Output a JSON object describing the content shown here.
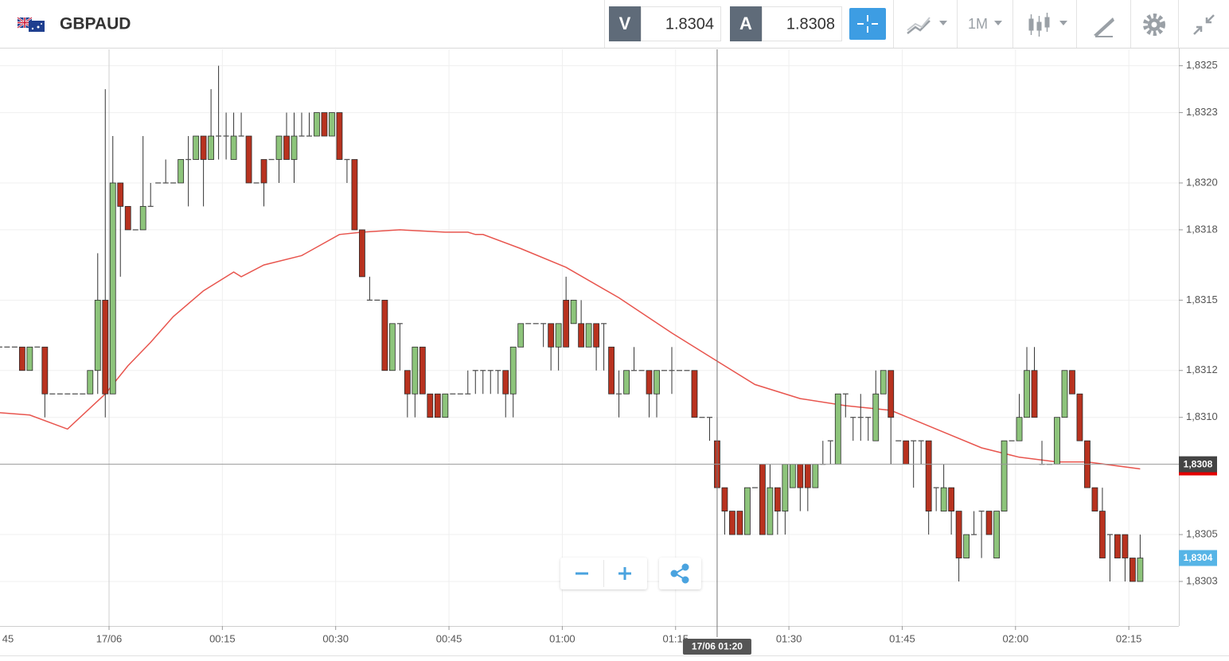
{
  "header": {
    "symbol": "GBPAUD",
    "bid_label": "V",
    "bid": 1.8304,
    "ask_label": "A",
    "ask": 1.8308,
    "interval": "1M"
  },
  "chart_data": {
    "type": "candlestick",
    "categories": [
      "23:45",
      "23:46",
      "23:47",
      "23:48",
      "23:49",
      "23:50",
      "23:51",
      "23:52",
      "23:53",
      "23:54",
      "23:55",
      "23:56",
      "23:57",
      "23:58",
      "23:59",
      "00:00",
      "00:01",
      "00:02",
      "00:03",
      "00:04",
      "00:05",
      "00:06",
      "00:07",
      "00:08",
      "00:09",
      "00:10",
      "00:11",
      "00:12",
      "00:13",
      "00:14",
      "00:15",
      "00:16",
      "00:17",
      "00:18",
      "00:19",
      "00:20",
      "00:21",
      "00:22",
      "00:23",
      "00:24",
      "00:25",
      "00:26",
      "00:27",
      "00:28",
      "00:29",
      "00:30",
      "00:31",
      "00:32",
      "00:33",
      "00:34",
      "00:35",
      "00:36",
      "00:37",
      "00:38",
      "00:39",
      "00:40",
      "00:41",
      "00:42",
      "00:43",
      "00:44",
      "00:45",
      "00:46",
      "00:47",
      "00:48",
      "00:49",
      "00:50",
      "00:51",
      "00:52",
      "00:53",
      "00:54",
      "00:55",
      "00:56",
      "00:57",
      "00:58",
      "00:59",
      "01:00",
      "01:01",
      "01:02",
      "01:03",
      "01:04",
      "01:05",
      "01:06",
      "01:07",
      "01:08",
      "01:09",
      "01:10",
      "01:11",
      "01:12",
      "01:13",
      "01:14",
      "01:15",
      "01:16",
      "01:17",
      "01:18",
      "01:19",
      "01:20",
      "01:21",
      "01:22",
      "01:23",
      "01:24",
      "01:25",
      "01:26",
      "01:27",
      "01:28",
      "01:29",
      "01:30",
      "01:31",
      "01:32",
      "01:33",
      "01:34",
      "01:35",
      "01:36",
      "01:37",
      "01:38",
      "01:39",
      "01:40",
      "01:41",
      "01:42",
      "01:43",
      "01:44",
      "01:45",
      "01:46",
      "01:47",
      "01:48",
      "01:49",
      "01:50",
      "01:51",
      "01:52",
      "01:53",
      "01:54",
      "01:55",
      "01:56",
      "01:57",
      "01:58",
      "01:59",
      "02:00",
      "02:01",
      "02:02",
      "02:03",
      "02:04",
      "02:05",
      "02:06",
      "02:07",
      "02:08",
      "02:09",
      "02:10",
      "02:11",
      "02:12",
      "02:13",
      "02:14",
      "02:15",
      "02:16"
    ],
    "open": [
      1.8313,
      1.8313,
      1.8313,
      1.8313,
      1.8312,
      1.8313,
      1.8313,
      1.8311,
      1.8311,
      1.8311,
      1.8311,
      1.8311,
      1.8311,
      1.8312,
      1.8315,
      1.8311,
      1.832,
      1.8319,
      1.8318,
      1.8318,
      1.8319,
      1.832,
      1.832,
      1.832,
      1.832,
      1.8321,
      1.8321,
      1.8322,
      1.8321,
      1.8322,
      1.8322,
      1.8321,
      1.8322,
      1.8322,
      1.832,
      1.8321,
      1.8321,
      1.8321,
      1.8322,
      1.8321,
      1.8322,
      1.8322,
      1.8322,
      1.8323,
      1.8322,
      1.8323,
      1.8321,
      1.8321,
      1.8318,
      1.8315,
      1.8315,
      1.8315,
      1.8312,
      1.8314,
      1.8312,
      1.8311,
      1.8313,
      1.8311,
      1.8311,
      1.831,
      1.8311,
      1.8311,
      1.8311,
      1.8312,
      1.8312,
      1.8312,
      1.8312,
      1.8312,
      1.8311,
      1.8313,
      1.8314,
      1.8314,
      1.8314,
      1.8314,
      1.8313,
      1.8315,
      1.8314,
      1.8314,
      1.8313,
      1.8314,
      1.8314,
      1.8313,
      1.8311,
      1.8311,
      1.8312,
      1.8312,
      1.8312,
      1.8311,
      1.8312,
      1.8312,
      1.8312,
      1.8312,
      1.8312,
      1.831,
      1.831,
      1.8309,
      1.8307,
      1.8306,
      1.8306,
      1.8305,
      1.8307,
      1.8308,
      1.8305,
      1.8307,
      1.8306,
      1.8307,
      1.8308,
      1.8308,
      1.8307,
      1.8308,
      1.8309,
      1.8308,
      1.8311,
      1.831,
      1.831,
      1.831,
      1.8309,
      1.8311,
      1.8312,
      1.8309,
      1.8309,
      1.8309,
      1.8309,
      1.8309,
      1.8307,
      1.8306,
      1.8307,
      1.8306,
      1.8304,
      1.8305,
      1.8306,
      1.8306,
      1.8304,
      1.8306,
      1.8309,
      1.8309,
      1.831,
      1.8312,
      1.8308,
      1.8308,
      1.8308,
      1.831,
      1.8312,
      1.8311,
      1.8309,
      1.8307,
      1.8306,
      1.8305,
      1.8305,
      1.8305,
      1.8304,
      1.8303
    ],
    "high": [
      1.8313,
      1.8313,
      1.8313,
      1.8313,
      1.8313,
      1.8313,
      1.8313,
      1.8311,
      1.8311,
      1.8311,
      1.8311,
      1.8311,
      1.8312,
      1.8317,
      1.8324,
      1.8322,
      1.832,
      1.8319,
      1.8318,
      1.8322,
      1.832,
      1.832,
      1.8321,
      1.832,
      1.8321,
      1.8322,
      1.8322,
      1.8322,
      1.8324,
      1.8325,
      1.8323,
      1.8323,
      1.8323,
      1.8322,
      1.832,
      1.8321,
      1.8321,
      1.8322,
      1.8323,
      1.8323,
      1.8323,
      1.8323,
      1.8323,
      1.8323,
      1.8323,
      1.8323,
      1.8321,
      1.8321,
      1.8318,
      1.8316,
      1.8315,
      1.8315,
      1.8314,
      1.8314,
      1.8312,
      1.8313,
      1.8313,
      1.8311,
      1.8311,
      1.8311,
      1.8311,
      1.8311,
      1.8312,
      1.8312,
      1.8312,
      1.8312,
      1.8312,
      1.8312,
      1.8313,
      1.8314,
      1.8314,
      1.8314,
      1.8314,
      1.8314,
      1.8314,
      1.8316,
      1.8315,
      1.8315,
      1.8314,
      1.8314,
      1.8314,
      1.8313,
      1.8312,
      1.8312,
      1.8313,
      1.8312,
      1.8312,
      1.8312,
      1.8312,
      1.8313,
      1.8312,
      1.8312,
      1.8312,
      1.831,
      1.831,
      1.831,
      1.8307,
      1.8306,
      1.8306,
      1.8307,
      1.8307,
      1.8308,
      1.8308,
      1.8307,
      1.8308,
      1.8308,
      1.8308,
      1.8308,
      1.8308,
      1.8309,
      1.8309,
      1.8311,
      1.8311,
      1.831,
      1.8311,
      1.831,
      1.8312,
      1.8312,
      1.8312,
      1.8309,
      1.8309,
      1.8309,
      1.8309,
      1.8309,
      1.8307,
      1.8308,
      1.8307,
      1.8306,
      1.8305,
      1.8306,
      1.8306,
      1.8306,
      1.8306,
      1.8309,
      1.8309,
      1.8311,
      1.8313,
      1.8313,
      1.8309,
      1.8308,
      1.831,
      1.8312,
      1.8312,
      1.8311,
      1.8309,
      1.8307,
      1.8307,
      1.8305,
      1.8305,
      1.8305,
      1.8304,
      1.8305
    ],
    "low": [
      1.8313,
      1.8313,
      1.8313,
      1.8312,
      1.8312,
      1.8313,
      1.831,
      1.8311,
      1.8311,
      1.8311,
      1.8311,
      1.8311,
      1.8311,
      1.8311,
      1.831,
      1.8311,
      1.8316,
      1.8318,
      1.8318,
      1.8318,
      1.8319,
      1.832,
      1.832,
      1.832,
      1.832,
      1.8319,
      1.8321,
      1.8319,
      1.8321,
      1.8321,
      1.8321,
      1.8321,
      1.8322,
      1.832,
      1.832,
      1.8319,
      1.8321,
      1.832,
      1.8321,
      1.832,
      1.8322,
      1.8322,
      1.8322,
      1.8322,
      1.8322,
      1.8321,
      1.832,
      1.8318,
      1.8316,
      1.8315,
      1.8315,
      1.8312,
      1.8312,
      1.8312,
      1.831,
      1.831,
      1.8311,
      1.831,
      1.831,
      1.831,
      1.8311,
      1.8311,
      1.8311,
      1.8311,
      1.8311,
      1.8311,
      1.8311,
      1.831,
      1.831,
      1.8313,
      1.8314,
      1.8314,
      1.8313,
      1.8312,
      1.8312,
      1.8313,
      1.8314,
      1.8313,
      1.8313,
      1.8312,
      1.8312,
      1.8311,
      1.831,
      1.8311,
      1.8312,
      1.8312,
      1.831,
      1.831,
      1.8312,
      1.8311,
      1.8312,
      1.8312,
      1.831,
      1.831,
      1.8309,
      1.8307,
      1.8305,
      1.8305,
      1.8305,
      1.8305,
      1.8307,
      1.8305,
      1.8305,
      1.8305,
      1.8305,
      1.8307,
      1.8306,
      1.8306,
      1.8307,
      1.8308,
      1.8308,
      1.8308,
      1.831,
      1.8309,
      1.8309,
      1.8309,
      1.8309,
      1.8311,
      1.8308,
      1.8309,
      1.8308,
      1.8307,
      1.8308,
      1.8305,
      1.8306,
      1.8306,
      1.8305,
      1.8303,
      1.8304,
      1.8305,
      1.8304,
      1.8305,
      1.8304,
      1.8306,
      1.8309,
      1.8309,
      1.831,
      1.831,
      1.8308,
      1.8308,
      1.8308,
      1.831,
      1.8311,
      1.8309,
      1.8307,
      1.8306,
      1.8304,
      1.8303,
      1.8304,
      1.8303,
      1.8303,
      1.8303
    ],
    "close": [
      1.8313,
      1.8313,
      1.8313,
      1.8312,
      1.8313,
      1.8313,
      1.8311,
      1.8311,
      1.8311,
      1.8311,
      1.8311,
      1.8311,
      1.8312,
      1.8315,
      1.8311,
      1.832,
      1.8319,
      1.8318,
      1.8318,
      1.8319,
      1.8319,
      1.832,
      1.832,
      1.832,
      1.8321,
      1.8321,
      1.8322,
      1.8321,
      1.8322,
      1.8322,
      1.8322,
      1.8322,
      1.8322,
      1.832,
      1.832,
      1.832,
      1.8321,
      1.8322,
      1.8321,
      1.8322,
      1.8322,
      1.8322,
      1.8323,
      1.8322,
      1.8323,
      1.8321,
      1.8321,
      1.8318,
      1.8316,
      1.8315,
      1.8315,
      1.8312,
      1.8314,
      1.8314,
      1.8311,
      1.8313,
      1.8311,
      1.831,
      1.831,
      1.8311,
      1.8311,
      1.8311,
      1.8311,
      1.8312,
      1.8312,
      1.8312,
      1.8312,
      1.8311,
      1.8313,
      1.8314,
      1.8314,
      1.8314,
      1.8314,
      1.8313,
      1.8314,
      1.8313,
      1.8315,
      1.8313,
      1.8314,
      1.8313,
      1.8314,
      1.8311,
      1.8311,
      1.8312,
      1.8312,
      1.8312,
      1.8311,
      1.8312,
      1.8312,
      1.8312,
      1.8312,
      1.8312,
      1.831,
      1.831,
      1.831,
      1.8307,
      1.8306,
      1.8305,
      1.8305,
      1.8307,
      1.8307,
      1.8305,
      1.8307,
      1.8306,
      1.8308,
      1.8308,
      1.8307,
      1.8307,
      1.8308,
      1.8308,
      1.8309,
      1.8311,
      1.8311,
      1.831,
      1.831,
      1.831,
      1.8311,
      1.8312,
      1.831,
      1.8309,
      1.8308,
      1.8309,
      1.8309,
      1.8306,
      1.8307,
      1.8307,
      1.8306,
      1.8304,
      1.8305,
      1.8305,
      1.8306,
      1.8305,
      1.8306,
      1.8309,
      1.8309,
      1.831,
      1.8312,
      1.831,
      1.8308,
      1.8308,
      1.831,
      1.8312,
      1.8311,
      1.8309,
      1.8307,
      1.8306,
      1.8304,
      1.8305,
      1.8304,
      1.8304,
      1.8303,
      1.8304
    ],
    "up_color": "#8dc47b",
    "down_color": "#b8321f",
    "ma": {
      "color": "#e8554e",
      "x": [
        "23:45",
        "23:49",
        "23:54",
        "23:59",
        "00:02",
        "00:05",
        "00:08",
        "00:12",
        "00:16",
        "00:17",
        "00:20",
        "00:25",
        "00:30",
        "00:33",
        "00:38",
        "00:44",
        "00:47",
        "00:48",
        "00:49",
        "00:54",
        "01:00",
        "01:07",
        "01:14",
        "01:20",
        "01:25",
        "01:31",
        "01:37",
        "01:43",
        "01:49",
        "01:55",
        "02:00",
        "02:05",
        "02:09",
        "02:16"
      ],
      "values": [
        1.83102,
        1.83101,
        1.83095,
        1.8311,
        1.83122,
        1.83132,
        1.83143,
        1.83154,
        1.83162,
        1.8316,
        1.83165,
        1.83169,
        1.83178,
        1.83179,
        1.8318,
        1.83179,
        1.83179,
        1.83178,
        1.83178,
        1.83172,
        1.83164,
        1.83151,
        1.83136,
        1.83124,
        1.83114,
        1.83108,
        1.83105,
        1.83103,
        1.83095,
        1.83087,
        1.83083,
        1.83081,
        1.83081,
        1.83078
      ]
    },
    "ylim": [
      1.83011,
      1.83257
    ],
    "yticks": [
      {
        "value": 1.8325,
        "label": "1,8325"
      },
      {
        "value": 1.8323,
        "label": "1,8323"
      },
      {
        "value": 1.832,
        "label": "1,8320"
      },
      {
        "value": 1.8318,
        "label": "1,8318"
      },
      {
        "value": 1.8315,
        "label": "1,8315"
      },
      {
        "value": 1.8312,
        "label": "1,8312"
      },
      {
        "value": 1.831,
        "label": "1,8310"
      },
      {
        "value": 1.8305,
        "label": "1,8305"
      },
      {
        "value": 1.8303,
        "label": "1,8303"
      }
    ],
    "xticks": [
      {
        "value": "23:45",
        "label": "45"
      },
      {
        "value": "00:00",
        "label": "17/06"
      },
      "00:15",
      "00:30",
      "00:45",
      "01:00",
      "01:15",
      "01:30",
      "01:45",
      "02:00",
      "02:15"
    ],
    "grid": true,
    "crosshair": {
      "x": "01:20",
      "x_label": "17/06 01:20",
      "y": 1.8308,
      "y_label": "1,8308"
    },
    "last_price": {
      "value": 1.8304,
      "label": "1,8304"
    }
  }
}
